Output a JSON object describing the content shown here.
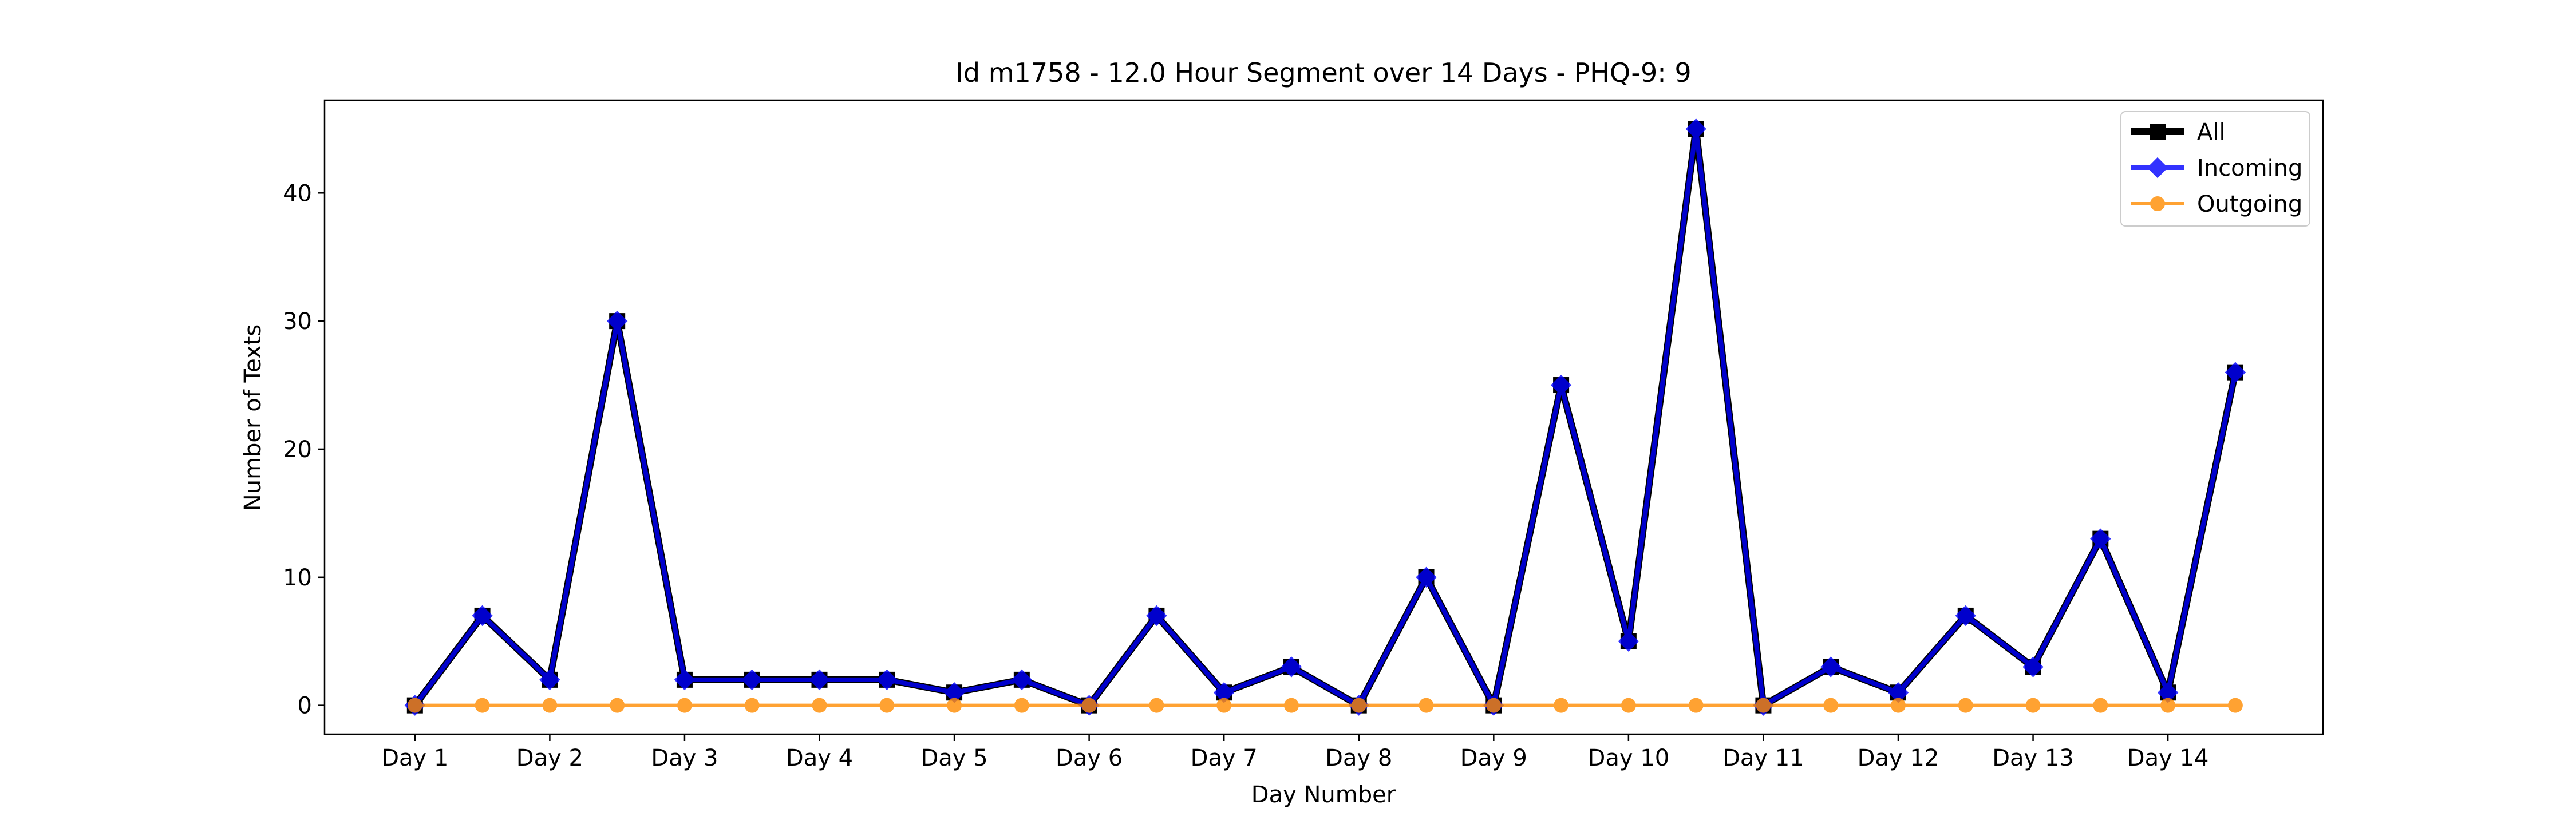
{
  "chart_data": {
    "type": "line",
    "title": "Id m1758 - 12.0 Hour Segment over 14 Days - PHQ-9: 9",
    "xlabel": "Day Number",
    "ylabel": "Number of Texts",
    "x": [
      1,
      1.5,
      2,
      2.5,
      3,
      3.5,
      4,
      4.5,
      5,
      5.5,
      6,
      6.5,
      7,
      7.5,
      8,
      8.5,
      9,
      9.5,
      10,
      10.5,
      11,
      11.5,
      12,
      12.5,
      13,
      13.5,
      14,
      14.5
    ],
    "xticks": [
      1,
      2,
      3,
      4,
      5,
      6,
      7,
      8,
      9,
      10,
      11,
      12,
      13,
      14
    ],
    "xtick_labels": [
      "Day 1",
      "Day 2",
      "Day 3",
      "Day 4",
      "Day 5",
      "Day 6",
      "Day 7",
      "Day 8",
      "Day 9",
      "Day 10",
      "Day 11",
      "Day 12",
      "Day 13",
      "Day 14"
    ],
    "yticks": [
      0,
      10,
      20,
      30,
      40
    ],
    "xlim": [
      0.33,
      15.15
    ],
    "ylim": [
      -2.25,
      47.25
    ],
    "grid": false,
    "legend_position": "top-right",
    "series": [
      {
        "name": "All",
        "color": "#000000",
        "marker": "square",
        "values": [
          0,
          7,
          2,
          30,
          2,
          2,
          2,
          2,
          1,
          2,
          0,
          7,
          1,
          3,
          0,
          10,
          0,
          25,
          5,
          45,
          0,
          3,
          1,
          7,
          3,
          13,
          1,
          26
        ]
      },
      {
        "name": "Incoming",
        "color": "#0000ff",
        "marker": "diamond",
        "values": [
          0,
          7,
          2,
          30,
          2,
          2,
          2,
          2,
          1,
          2,
          0,
          7,
          1,
          3,
          0,
          10,
          0,
          25,
          5,
          45,
          0,
          3,
          1,
          7,
          3,
          13,
          1,
          26
        ]
      },
      {
        "name": "Outgoing",
        "color": "#ff8c00",
        "marker": "circle",
        "values": [
          0,
          0,
          0,
          0,
          0,
          0,
          0,
          0,
          0,
          0,
          0,
          0,
          0,
          0,
          0,
          0,
          0,
          0,
          0,
          0,
          0,
          0,
          0,
          0,
          0,
          0,
          0,
          0
        ]
      }
    ]
  }
}
